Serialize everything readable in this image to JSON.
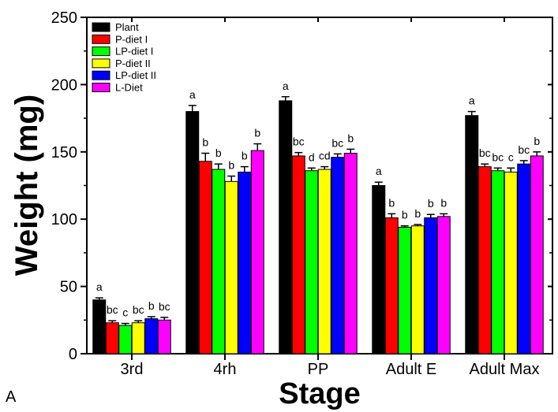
{
  "chart_data": {
    "type": "bar",
    "xlabel": "Stage",
    "ylabel": "Weight (mg)",
    "panel_label": "A",
    "ylim": [
      0,
      250
    ],
    "yticks": [
      "0",
      "50",
      "100",
      "150",
      "200",
      "250"
    ],
    "categories": [
      "3rd",
      "4rh",
      "PP",
      "Adult E",
      "Adult Max"
    ],
    "legend_position": "top-left",
    "series": [
      {
        "name": "Plant",
        "color": "#000000",
        "values": [
          40,
          180,
          188,
          125,
          177
        ],
        "errors": [
          1.5,
          4.5,
          3,
          2.5,
          3
        ],
        "labels": [
          "a",
          "a",
          "a",
          "a",
          "a"
        ]
      },
      {
        "name": "P-diet I",
        "color": "#ff0000",
        "values": [
          23,
          143,
          147,
          101,
          139
        ],
        "errors": [
          1.5,
          6,
          2.5,
          3,
          2
        ],
        "labels": [
          "bc",
          "b",
          "bc",
          "b",
          "bc"
        ]
      },
      {
        "name": "LP-diet I",
        "color": "#00ff00",
        "values": [
          21,
          137,
          136,
          94,
          136
        ],
        "errors": [
          1.5,
          4,
          2,
          1,
          2
        ],
        "labels": [
          "c",
          "b",
          "d",
          "b",
          "bc"
        ]
      },
      {
        "name": "P-diet II",
        "color": "#ffff00",
        "values": [
          23,
          128,
          137,
          95,
          135
        ],
        "errors": [
          1.5,
          4,
          2,
          1,
          3
        ],
        "labels": [
          "bc",
          "b",
          "cd",
          "b",
          "c"
        ]
      },
      {
        "name": "LP-diet II",
        "color": "#0000ff",
        "values": [
          26,
          135,
          146,
          101,
          141
        ],
        "errors": [
          1.5,
          4,
          2.5,
          2.5,
          2.5
        ],
        "labels": [
          "b",
          "b",
          "bc",
          "b",
          "bc"
        ]
      },
      {
        "name": "L-Diet",
        "color": "#ff00ff",
        "values": [
          25,
          151,
          149,
          102,
          147
        ],
        "errors": [
          2,
          5,
          3,
          2,
          3
        ],
        "labels": [
          "bc",
          "b",
          "b",
          "b",
          "b"
        ]
      }
    ]
  }
}
